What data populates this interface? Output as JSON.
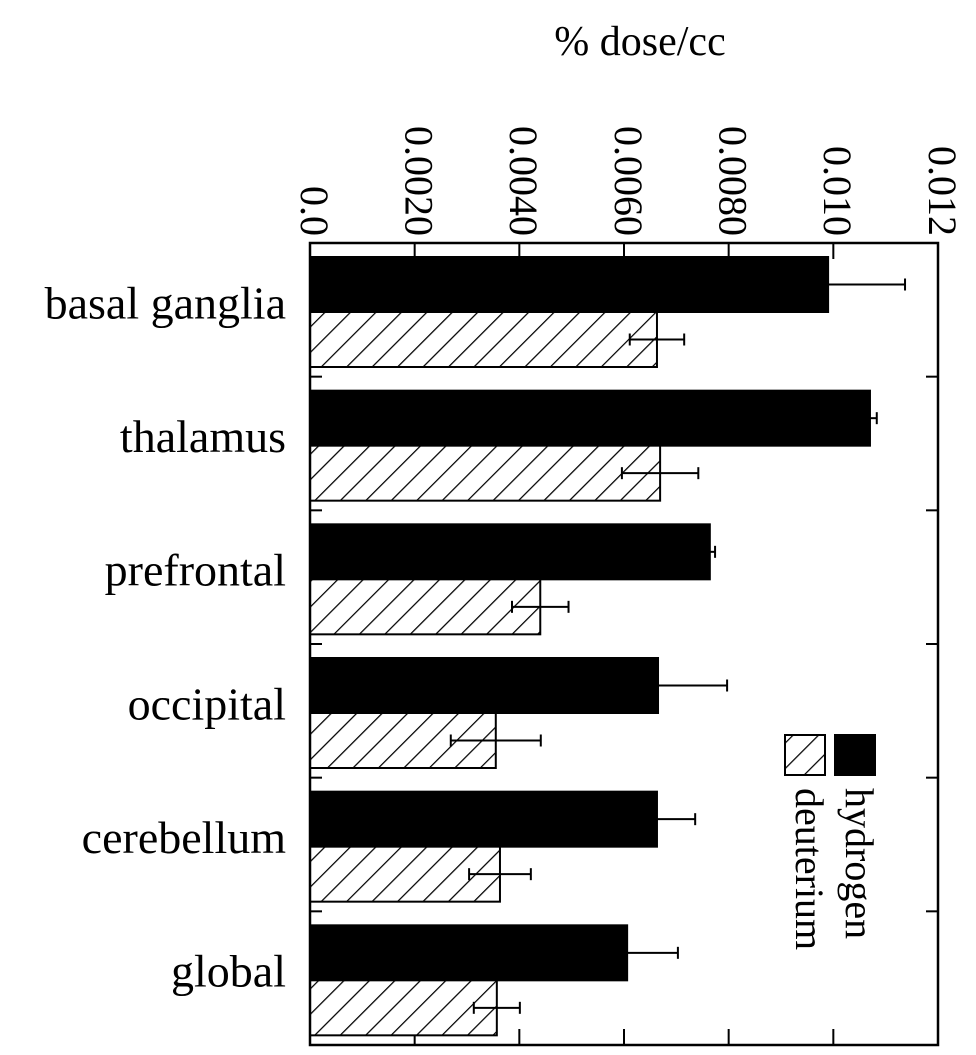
{
  "chart_data": {
    "type": "bar",
    "orientation": "horizontal",
    "xlabel": "% dose/cc",
    "categories": [
      "basal ganglia",
      "thalamus",
      "prefrontal",
      "occipital",
      "cerebellum",
      "global"
    ],
    "series": [
      {
        "name": "hydrogen",
        "color": "#000000",
        "hatch": false,
        "values": [
          0.0099,
          0.0107,
          0.00764,
          0.00665,
          0.00663,
          0.00606
        ],
        "errors": [
          0.00147,
          0.00013,
          0.0001,
          0.00132,
          0.00073,
          0.00097
        ]
      },
      {
        "name": "deuterium",
        "color": "#000000",
        "hatch": true,
        "values": [
          0.00663,
          0.00669,
          0.0044,
          0.00355,
          0.00363,
          0.00357
        ],
        "errors": [
          0.00052,
          0.00073,
          0.00054,
          0.00086,
          0.00059,
          0.00044
        ]
      }
    ],
    "xlim": [
      0,
      0.012
    ],
    "xticks": [
      {
        "value": 0,
        "label": "0.0"
      },
      {
        "value": 0.002,
        "label": "0.0020"
      },
      {
        "value": 0.004,
        "label": "0.0040"
      },
      {
        "value": 0.006,
        "label": "0.0060"
      },
      {
        "value": 0.008,
        "label": "0.0080"
      },
      {
        "value": 0.01,
        "label": "0.010"
      },
      {
        "value": 0.012,
        "label": "0.012"
      }
    ],
    "legend": "lower right"
  }
}
